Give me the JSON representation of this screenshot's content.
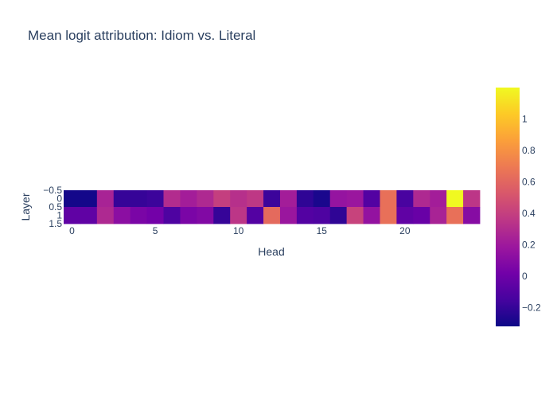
{
  "chart_data": {
    "type": "heatmap",
    "title": "Mean logit attribution: Idiom vs. Literal",
    "xlabel": "Head",
    "ylabel": "Layer",
    "x": [
      0,
      1,
      2,
      3,
      4,
      5,
      6,
      7,
      8,
      9,
      10,
      11,
      12,
      13,
      14,
      15,
      16,
      17,
      18,
      19,
      20,
      21,
      22,
      23,
      24
    ],
    "y": [
      0,
      1
    ],
    "x_ticks": [
      0,
      5,
      10,
      15,
      20
    ],
    "y_ticks": [
      -0.5,
      0,
      0.5,
      1,
      1.5
    ],
    "y_tick_labels": [
      "−0.5",
      "0",
      "0.5",
      "1",
      "1.5"
    ],
    "x_tick_labels": [
      "0",
      "5",
      "10",
      "15",
      "20"
    ],
    "z": [
      [
        -0.3,
        -0.3,
        0.25,
        -0.2,
        -0.2,
        -0.18,
        0.3,
        0.22,
        0.28,
        0.4,
        0.32,
        0.36,
        -0.18,
        0.22,
        -0.22,
        -0.28,
        0.16,
        0.18,
        -0.1,
        0.65,
        -0.14,
        0.28,
        0.22,
        1.2,
        0.35
      ],
      [
        -0.05,
        -0.05,
        0.28,
        0.12,
        0.05,
        0.02,
        -0.12,
        0.05,
        0.08,
        -0.2,
        0.35,
        -0.1,
        0.62,
        0.18,
        -0.1,
        -0.12,
        -0.22,
        0.42,
        0.15,
        0.65,
        -0.05,
        -0.02,
        0.25,
        0.65,
        0.1
      ]
    ],
    "zmin": -0.32,
    "zmax": 1.2,
    "colorbar_ticks": [
      -0.2,
      0,
      0.2,
      0.4,
      0.6,
      0.8,
      1
    ],
    "colorbar_tick_labels": [
      "−0.2",
      "0",
      "0.2",
      "0.4",
      "0.6",
      "0.8",
      "1"
    ],
    "colorscale": [
      "#0d0887",
      "#46039f",
      "#7201a8",
      "#9c179e",
      "#bd3786",
      "#d8576b",
      "#ed7953",
      "#fb9f3a",
      "#fdca26",
      "#f0f921"
    ]
  }
}
